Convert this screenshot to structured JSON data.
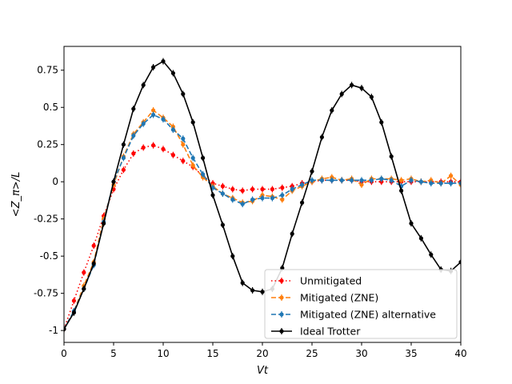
{
  "chart_data": {
    "type": "line",
    "xlabel": "Vt",
    "ylabel": "<Z_π>/L",
    "xlim": [
      0,
      40
    ],
    "ylim": [
      -1.08,
      0.91
    ],
    "x_ticks": [
      0,
      5,
      10,
      15,
      20,
      25,
      30,
      35,
      40
    ],
    "x_tick_labels": [
      "0",
      "5",
      "10",
      "15",
      "20",
      "25",
      "30",
      "35",
      "40"
    ],
    "y_ticks": [
      -1,
      -0.75,
      -0.5,
      -0.25,
      0,
      0.25,
      0.5,
      0.75
    ],
    "y_tick_labels": [
      "-1",
      "-0.75",
      "-0.5",
      "-0.25",
      "0",
      "0.25",
      "0.5",
      "0.75"
    ],
    "grid": false,
    "legend_position": "bottom-right",
    "series": [
      {
        "name": "Unmitigated",
        "color": "#ff0000",
        "style": "dotted",
        "x": [
          0,
          1,
          2,
          3,
          4,
          5,
          6,
          7,
          8,
          9,
          10,
          11,
          12,
          13,
          14,
          15,
          16,
          17,
          18,
          19,
          20,
          21,
          22,
          23,
          24,
          25,
          26,
          27,
          28,
          29,
          30,
          31,
          32,
          33,
          34,
          35,
          36,
          37,
          38,
          39,
          40
        ],
        "y": [
          -0.99,
          -0.8,
          -0.61,
          -0.43,
          -0.23,
          -0.05,
          0.08,
          0.19,
          0.23,
          0.245,
          0.22,
          0.18,
          0.14,
          0.1,
          0.04,
          -0.01,
          -0.03,
          -0.05,
          -0.06,
          -0.05,
          -0.05,
          -0.05,
          -0.04,
          -0.03,
          -0.01,
          0.0,
          0.01,
          0.01,
          0.01,
          0.01,
          0.0,
          0.0,
          0.0,
          0.0,
          0.0,
          0.0,
          0.0,
          0.0,
          0.0,
          0.0,
          0.0
        ]
      },
      {
        "name": "Mitigated (ZNE)",
        "color": "#ff7f0e",
        "style": "dashed",
        "x": [
          0,
          1,
          2,
          3,
          4,
          5,
          6,
          7,
          8,
          9,
          10,
          11,
          12,
          13,
          14,
          15,
          16,
          17,
          18,
          19,
          20,
          21,
          22,
          23,
          24,
          25,
          26,
          27,
          28,
          29,
          30,
          31,
          32,
          33,
          34,
          35,
          36,
          37,
          38,
          39,
          40
        ],
        "y": [
          -0.99,
          -0.87,
          -0.7,
          -0.54,
          -0.25,
          -0.02,
          0.17,
          0.32,
          0.4,
          0.48,
          0.43,
          0.37,
          0.25,
          0.11,
          0.03,
          -0.03,
          -0.08,
          -0.11,
          -0.14,
          -0.13,
          -0.09,
          -0.1,
          -0.12,
          -0.06,
          -0.03,
          0.0,
          0.02,
          0.03,
          0.01,
          0.02,
          -0.02,
          0.02,
          0.02,
          0.02,
          0.01,
          0.02,
          0.0,
          0.01,
          -0.01,
          0.04,
          -0.02
        ]
      },
      {
        "name": "Mitigated (ZNE) alternative",
        "color": "#1f77b4",
        "style": "dashed",
        "x": [
          0,
          1,
          2,
          3,
          4,
          5,
          6,
          7,
          8,
          9,
          10,
          11,
          12,
          13,
          14,
          15,
          16,
          17,
          18,
          19,
          20,
          21,
          22,
          23,
          24,
          25,
          26,
          27,
          28,
          29,
          30,
          31,
          32,
          33,
          34,
          35,
          36,
          37,
          38,
          39,
          40
        ],
        "y": [
          -0.99,
          -0.87,
          -0.72,
          -0.56,
          -0.27,
          0.0,
          0.16,
          0.31,
          0.39,
          0.45,
          0.42,
          0.35,
          0.29,
          0.16,
          0.05,
          -0.04,
          -0.08,
          -0.12,
          -0.15,
          -0.12,
          -0.11,
          -0.11,
          -0.09,
          -0.05,
          -0.02,
          0.01,
          0.01,
          0.01,
          0.01,
          0.01,
          0.01,
          0.01,
          0.02,
          0.01,
          -0.03,
          0.01,
          0.0,
          -0.01,
          -0.01,
          -0.01,
          -0.01
        ]
      },
      {
        "name": "Ideal Trotter",
        "color": "#000000",
        "style": "solid",
        "x": [
          0,
          1,
          2,
          3,
          4,
          5,
          6,
          7,
          8,
          9,
          10,
          11,
          12,
          13,
          14,
          15,
          16,
          17,
          18,
          19,
          20,
          21,
          22,
          23,
          24,
          25,
          26,
          27,
          28,
          29,
          30,
          31,
          32,
          33,
          34,
          35,
          36,
          37,
          38,
          39,
          40
        ],
        "y": [
          -0.99,
          -0.88,
          -0.72,
          -0.55,
          -0.28,
          0.0,
          0.25,
          0.49,
          0.65,
          0.77,
          0.81,
          0.73,
          0.59,
          0.4,
          0.16,
          -0.09,
          -0.29,
          -0.5,
          -0.68,
          -0.73,
          -0.74,
          -0.72,
          -0.58,
          -0.35,
          -0.14,
          0.07,
          0.3,
          0.48,
          0.59,
          0.65,
          0.63,
          0.57,
          0.4,
          0.17,
          -0.06,
          -0.28,
          -0.38,
          -0.49,
          -0.59,
          -0.6,
          -0.54
        ]
      }
    ]
  }
}
